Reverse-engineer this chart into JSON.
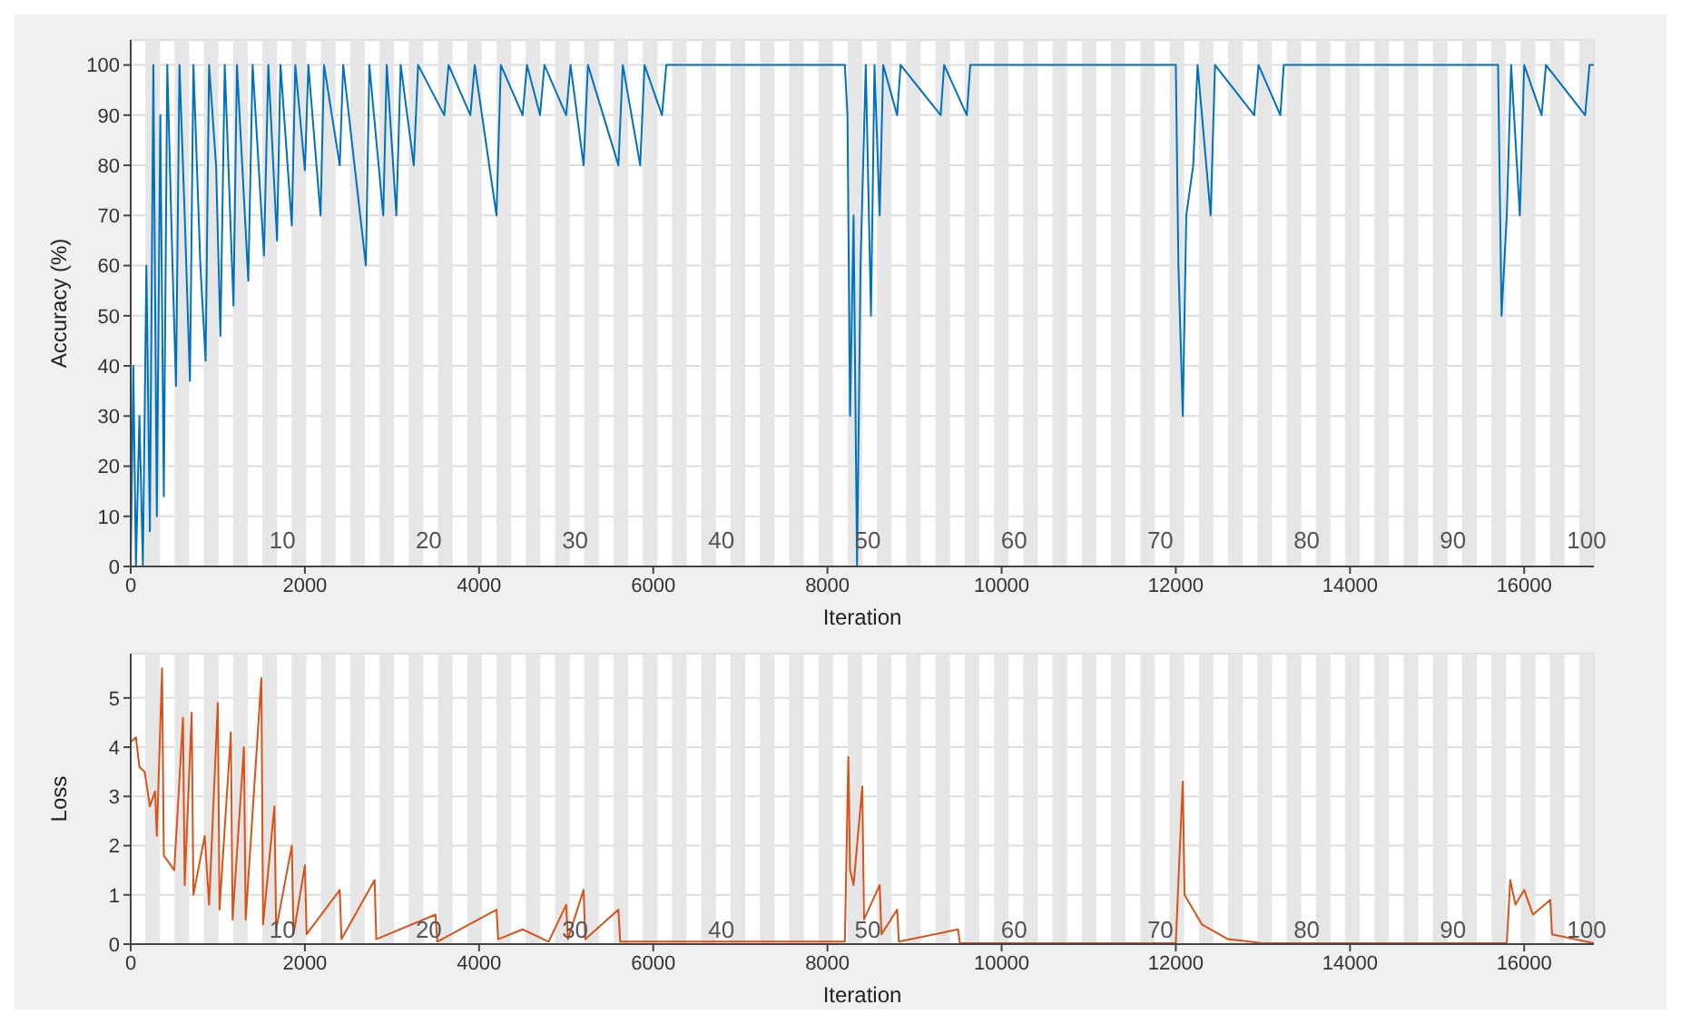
{
  "chart_data": [
    {
      "type": "line",
      "xlabel": "Iteration",
      "ylabel": "Accuracy (%)",
      "xlim": [
        0,
        16800
      ],
      "xticks": [
        0,
        2000,
        4000,
        6000,
        8000,
        10000,
        12000,
        14000,
        16000
      ],
      "ylim": [
        0,
        105
      ],
      "yticks": [
        0,
        10,
        20,
        30,
        40,
        50,
        60,
        70,
        80,
        90,
        100
      ],
      "grid": true,
      "marker": "none",
      "line_style": "solid",
      "x": [
        0,
        30,
        60,
        100,
        140,
        180,
        220,
        260,
        300,
        340,
        380,
        420,
        480,
        520,
        560,
        620,
        680,
        720,
        800,
        860,
        900,
        980,
        1030,
        1080,
        1180,
        1220,
        1350,
        1400,
        1530,
        1580,
        1680,
        1720,
        1850,
        1890,
        2000,
        2040,
        2180,
        2220,
        2400,
        2440,
        2700,
        2740,
        2900,
        2940,
        3050,
        3100,
        3250,
        3300,
        3600,
        3650,
        3900,
        3950,
        4200,
        4250,
        4500,
        4550,
        4700,
        4750,
        5000,
        5050,
        5200,
        5250,
        5600,
        5650,
        5850,
        5900,
        6100,
        6150,
        6300,
        8200,
        8230,
        8260,
        8300,
        8340,
        8380,
        8440,
        8500,
        8540,
        8600,
        8640,
        8800,
        8840,
        9300,
        9340,
        9600,
        9640,
        12000,
        12030,
        12080,
        12120,
        12200,
        12250,
        12400,
        12450,
        12900,
        12950,
        13200,
        13240,
        15700,
        15740,
        15800,
        15850,
        15950,
        16000,
        16200,
        16250,
        16700,
        16750,
        16800
      ],
      "series": [
        {
          "color": "#0072bd",
          "values": [
            0,
            40,
            0,
            30,
            0,
            60,
            7,
            100,
            10,
            90,
            14,
            100,
            60,
            36,
            100,
            70,
            37,
            100,
            60,
            41,
            100,
            80,
            46,
            100,
            52,
            100,
            57,
            100,
            62,
            100,
            65,
            100,
            68,
            100,
            79,
            100,
            70,
            100,
            80,
            100,
            60,
            100,
            70,
            100,
            70,
            100,
            80,
            100,
            90,
            100,
            90,
            100,
            70,
            100,
            90,
            100,
            90,
            100,
            90,
            100,
            80,
            100,
            80,
            100,
            80,
            100,
            90,
            100,
            100,
            100,
            90,
            30,
            70,
            0,
            60,
            100,
            50,
            100,
            70,
            100,
            90,
            100,
            90,
            100,
            90,
            100,
            100,
            60,
            30,
            70,
            80,
            100,
            70,
            100,
            90,
            100,
            90,
            100,
            100,
            50,
            70,
            100,
            70,
            100,
            90,
            100,
            90,
            100,
            100
          ]
        }
      ],
      "bands": [
        {
          "axis": "x",
          "from": 168,
          "to": 336,
          "color": "#e6e6e6"
        },
        {
          "axis": "x",
          "from": 504,
          "to": 672,
          "color": "#e6e6e6"
        },
        {
          "axis": "x",
          "from": 840,
          "to": 1008,
          "color": "#e6e6e6"
        },
        {
          "axis": "x",
          "from": 1176,
          "to": 1344,
          "color": "#e6e6e6"
        },
        {
          "axis": "x",
          "from": 1512,
          "to": 1680,
          "color": "#e6e6e6"
        },
        {
          "axis": "x",
          "from": 1848,
          "to": 2016,
          "color": "#e6e6e6"
        },
        {
          "axis": "x",
          "from": 2184,
          "to": 2352,
          "color": "#e6e6e6"
        },
        {
          "axis": "x",
          "from": 2520,
          "to": 2688,
          "color": "#e6e6e6"
        },
        {
          "axis": "x",
          "from": 2856,
          "to": 3024,
          "color": "#e6e6e6"
        },
        {
          "axis": "x",
          "from": 3192,
          "to": 3360,
          "color": "#e6e6e6"
        },
        {
          "axis": "x",
          "from": 3528,
          "to": 3696,
          "color": "#e6e6e6"
        },
        {
          "axis": "x",
          "from": 3864,
          "to": 4032,
          "color": "#e6e6e6"
        },
        {
          "axis": "x",
          "from": 4200,
          "to": 4368,
          "color": "#e6e6e6"
        },
        {
          "axis": "x",
          "from": 4536,
          "to": 4704,
          "color": "#e6e6e6"
        },
        {
          "axis": "x",
          "from": 4872,
          "to": 5040,
          "color": "#e6e6e6"
        },
        {
          "axis": "x",
          "from": 5208,
          "to": 5376,
          "color": "#e6e6e6"
        },
        {
          "axis": "x",
          "from": 5544,
          "to": 5712,
          "color": "#e6e6e6"
        },
        {
          "axis": "x",
          "from": 5880,
          "to": 6048,
          "color": "#e6e6e6"
        },
        {
          "axis": "x",
          "from": 6216,
          "to": 6384,
          "color": "#e6e6e6"
        },
        {
          "axis": "x",
          "from": 6552,
          "to": 6720,
          "color": "#e6e6e6"
        },
        {
          "axis": "x",
          "from": 6888,
          "to": 7056,
          "color": "#e6e6e6"
        },
        {
          "axis": "x",
          "from": 7224,
          "to": 7392,
          "color": "#e6e6e6"
        },
        {
          "axis": "x",
          "from": 7560,
          "to": 7728,
          "color": "#e6e6e6"
        },
        {
          "axis": "x",
          "from": 7896,
          "to": 8064,
          "color": "#e6e6e6"
        },
        {
          "axis": "x",
          "from": 8232,
          "to": 8400,
          "color": "#e6e6e6"
        },
        {
          "axis": "x",
          "from": 8568,
          "to": 8736,
          "color": "#e6e6e6"
        },
        {
          "axis": "x",
          "from": 8904,
          "to": 9072,
          "color": "#e6e6e6"
        },
        {
          "axis": "x",
          "from": 9240,
          "to": 9408,
          "color": "#e6e6e6"
        },
        {
          "axis": "x",
          "from": 9576,
          "to": 9744,
          "color": "#e6e6e6"
        },
        {
          "axis": "x",
          "from": 9912,
          "to": 10080,
          "color": "#e6e6e6"
        },
        {
          "axis": "x",
          "from": 10248,
          "to": 10416,
          "color": "#e6e6e6"
        },
        {
          "axis": "x",
          "from": 10584,
          "to": 10752,
          "color": "#e6e6e6"
        },
        {
          "axis": "x",
          "from": 10920,
          "to": 11088,
          "color": "#e6e6e6"
        },
        {
          "axis": "x",
          "from": 11256,
          "to": 11424,
          "color": "#e6e6e6"
        },
        {
          "axis": "x",
          "from": 11592,
          "to": 11760,
          "color": "#e6e6e6"
        },
        {
          "axis": "x",
          "from": 11928,
          "to": 12096,
          "color": "#e6e6e6"
        },
        {
          "axis": "x",
          "from": 12264,
          "to": 12432,
          "color": "#e6e6e6"
        },
        {
          "axis": "x",
          "from": 12600,
          "to": 12768,
          "color": "#e6e6e6"
        },
        {
          "axis": "x",
          "from": 12936,
          "to": 13104,
          "color": "#e6e6e6"
        },
        {
          "axis": "x",
          "from": 13272,
          "to": 13440,
          "color": "#e6e6e6"
        },
        {
          "axis": "x",
          "from": 13608,
          "to": 13776,
          "color": "#e6e6e6"
        },
        {
          "axis": "x",
          "from": 13944,
          "to": 14112,
          "color": "#e6e6e6"
        },
        {
          "axis": "x",
          "from": 14280,
          "to": 14448,
          "color": "#e6e6e6"
        },
        {
          "axis": "x",
          "from": 14616,
          "to": 14784,
          "color": "#e6e6e6"
        },
        {
          "axis": "x",
          "from": 14952,
          "to": 15120,
          "color": "#e6e6e6"
        },
        {
          "axis": "x",
          "from": 15288,
          "to": 15456,
          "color": "#e6e6e6"
        },
        {
          "axis": "x",
          "from": 15624,
          "to": 15792,
          "color": "#e6e6e6"
        },
        {
          "axis": "x",
          "from": 15960,
          "to": 16128,
          "color": "#e6e6e6"
        },
        {
          "axis": "x",
          "from": 16296,
          "to": 16464,
          "color": "#e6e6e6"
        },
        {
          "axis": "x",
          "from": 16632,
          "to": 16800,
          "color": "#e6e6e6"
        }
      ],
      "annotations": [
        "10",
        "20",
        "30",
        "40",
        "50",
        "60",
        "70",
        "80",
        "90",
        "100"
      ]
    },
    {
      "type": "line",
      "xlabel": "Iteration",
      "ylabel": "Loss",
      "xlim": [
        0,
        16800
      ],
      "xticks": [
        0,
        2000,
        4000,
        6000,
        8000,
        10000,
        12000,
        14000,
        16000
      ],
      "ylim": [
        0,
        5.9
      ],
      "yticks": [
        0,
        1,
        2,
        3,
        4,
        5
      ],
      "grid": true,
      "marker": "none",
      "line_style": "solid",
      "x": [
        0,
        60,
        100,
        160,
        220,
        280,
        300,
        360,
        380,
        500,
        600,
        620,
        700,
        720,
        850,
        900,
        1000,
        1020,
        1150,
        1170,
        1300,
        1320,
        1500,
        1520,
        1650,
        1670,
        1850,
        1870,
        2000,
        2020,
        2400,
        2420,
        2800,
        2820,
        3500,
        3520,
        4200,
        4220,
        4500,
        4800,
        5000,
        5020,
        5200,
        5220,
        5600,
        5620,
        6000,
        8200,
        8240,
        8260,
        8300,
        8400,
        8420,
        8600,
        8620,
        8800,
        8820,
        9500,
        9520,
        12000,
        12040,
        12080,
        12100,
        12300,
        12600,
        13000,
        15800,
        15840,
        15900,
        16000,
        16100,
        16300,
        16320,
        16800
      ],
      "series": [
        {
          "color": "#d95319",
          "values": [
            4.1,
            4.2,
            3.6,
            3.5,
            2.8,
            3.1,
            2.2,
            5.6,
            1.8,
            1.5,
            4.6,
            1.2,
            4.7,
            1.0,
            2.2,
            0.8,
            4.9,
            0.7,
            4.3,
            0.5,
            4.0,
            0.5,
            5.4,
            0.4,
            2.8,
            0.3,
            2.0,
            0.2,
            1.6,
            0.2,
            1.1,
            0.1,
            1.3,
            0.1,
            0.6,
            0.05,
            0.7,
            0.1,
            0.3,
            0.05,
            0.8,
            0.1,
            1.1,
            0.1,
            0.7,
            0.05,
            0.05,
            0.05,
            3.8,
            1.5,
            1.2,
            3.2,
            0.5,
            1.2,
            0.2,
            0.7,
            0.05,
            0.3,
            0.02,
            0.02,
            1.7,
            3.3,
            1.0,
            0.4,
            0.1,
            0.02,
            0.02,
            1.3,
            0.8,
            1.1,
            0.6,
            0.9,
            0.2,
            0.02
          ]
        }
      ],
      "bands": [
        {
          "axis": "x",
          "from": 168,
          "to": 336,
          "color": "#e6e6e6"
        },
        {
          "axis": "x",
          "from": 504,
          "to": 672,
          "color": "#e6e6e6"
        },
        {
          "axis": "x",
          "from": 840,
          "to": 1008,
          "color": "#e6e6e6"
        },
        {
          "axis": "x",
          "from": 1176,
          "to": 1344,
          "color": "#e6e6e6"
        },
        {
          "axis": "x",
          "from": 1512,
          "to": 1680,
          "color": "#e6e6e6"
        },
        {
          "axis": "x",
          "from": 1848,
          "to": 2016,
          "color": "#e6e6e6"
        },
        {
          "axis": "x",
          "from": 2184,
          "to": 2352,
          "color": "#e6e6e6"
        },
        {
          "axis": "x",
          "from": 2520,
          "to": 2688,
          "color": "#e6e6e6"
        },
        {
          "axis": "x",
          "from": 2856,
          "to": 3024,
          "color": "#e6e6e6"
        },
        {
          "axis": "x",
          "from": 3192,
          "to": 3360,
          "color": "#e6e6e6"
        },
        {
          "axis": "x",
          "from": 3528,
          "to": 3696,
          "color": "#e6e6e6"
        },
        {
          "axis": "x",
          "from": 3864,
          "to": 4032,
          "color": "#e6e6e6"
        },
        {
          "axis": "x",
          "from": 4200,
          "to": 4368,
          "color": "#e6e6e6"
        },
        {
          "axis": "x",
          "from": 4536,
          "to": 4704,
          "color": "#e6e6e6"
        },
        {
          "axis": "x",
          "from": 4872,
          "to": 5040,
          "color": "#e6e6e6"
        },
        {
          "axis": "x",
          "from": 5208,
          "to": 5376,
          "color": "#e6e6e6"
        },
        {
          "axis": "x",
          "from": 5544,
          "to": 5712,
          "color": "#e6e6e6"
        },
        {
          "axis": "x",
          "from": 5880,
          "to": 6048,
          "color": "#e6e6e6"
        },
        {
          "axis": "x",
          "from": 6216,
          "to": 6384,
          "color": "#e6e6e6"
        },
        {
          "axis": "x",
          "from": 6552,
          "to": 6720,
          "color": "#e6e6e6"
        },
        {
          "axis": "x",
          "from": 6888,
          "to": 7056,
          "color": "#e6e6e6"
        },
        {
          "axis": "x",
          "from": 7224,
          "to": 7392,
          "color": "#e6e6e6"
        },
        {
          "axis": "x",
          "from": 7560,
          "to": 7728,
          "color": "#e6e6e6"
        },
        {
          "axis": "x",
          "from": 7896,
          "to": 8064,
          "color": "#e6e6e6"
        },
        {
          "axis": "x",
          "from": 8232,
          "to": 8400,
          "color": "#e6e6e6"
        },
        {
          "axis": "x",
          "from": 8568,
          "to": 8736,
          "color": "#e6e6e6"
        },
        {
          "axis": "x",
          "from": 8904,
          "to": 9072,
          "color": "#e6e6e6"
        },
        {
          "axis": "x",
          "from": 9240,
          "to": 9408,
          "color": "#e6e6e6"
        },
        {
          "axis": "x",
          "from": 9576,
          "to": 9744,
          "color": "#e6e6e6"
        },
        {
          "axis": "x",
          "from": 9912,
          "to": 10080,
          "color": "#e6e6e6"
        },
        {
          "axis": "x",
          "from": 10248,
          "to": 10416,
          "color": "#e6e6e6"
        },
        {
          "axis": "x",
          "from": 10584,
          "to": 10752,
          "color": "#e6e6e6"
        },
        {
          "axis": "x",
          "from": 10920,
          "to": 11088,
          "color": "#e6e6e6"
        },
        {
          "axis": "x",
          "from": 11256,
          "to": 11424,
          "color": "#e6e6e6"
        },
        {
          "axis": "x",
          "from": 11592,
          "to": 11760,
          "color": "#e6e6e6"
        },
        {
          "axis": "x",
          "from": 11928,
          "to": 12096,
          "color": "#e6e6e6"
        },
        {
          "axis": "x",
          "from": 12264,
          "to": 12432,
          "color": "#e6e6e6"
        },
        {
          "axis": "x",
          "from": 12600,
          "to": 12768,
          "color": "#e6e6e6"
        },
        {
          "axis": "x",
          "from": 12936,
          "to": 13104,
          "color": "#e6e6e6"
        },
        {
          "axis": "x",
          "from": 13272,
          "to": 13440,
          "color": "#e6e6e6"
        },
        {
          "axis": "x",
          "from": 13608,
          "to": 13776,
          "color": "#e6e6e6"
        },
        {
          "axis": "x",
          "from": 13944,
          "to": 14112,
          "color": "#e6e6e6"
        },
        {
          "axis": "x",
          "from": 14280,
          "to": 14448,
          "color": "#e6e6e6"
        },
        {
          "axis": "x",
          "from": 14616,
          "to": 14784,
          "color": "#e6e6e6"
        },
        {
          "axis": "x",
          "from": 14952,
          "to": 15120,
          "color": "#e6e6e6"
        },
        {
          "axis": "x",
          "from": 15288,
          "to": 15456,
          "color": "#e6e6e6"
        },
        {
          "axis": "x",
          "from": 15624,
          "to": 15792,
          "color": "#e6e6e6"
        },
        {
          "axis": "x",
          "from": 15960,
          "to": 16128,
          "color": "#e6e6e6"
        },
        {
          "axis": "x",
          "from": 16296,
          "to": 16464,
          "color": "#e6e6e6"
        },
        {
          "axis": "x",
          "from": 16632,
          "to": 16800,
          "color": "#e6e6e6"
        }
      ],
      "annotations": [
        "10",
        "20",
        "30",
        "40",
        "50",
        "60",
        "70",
        "80",
        "90",
        "100"
      ]
    }
  ]
}
